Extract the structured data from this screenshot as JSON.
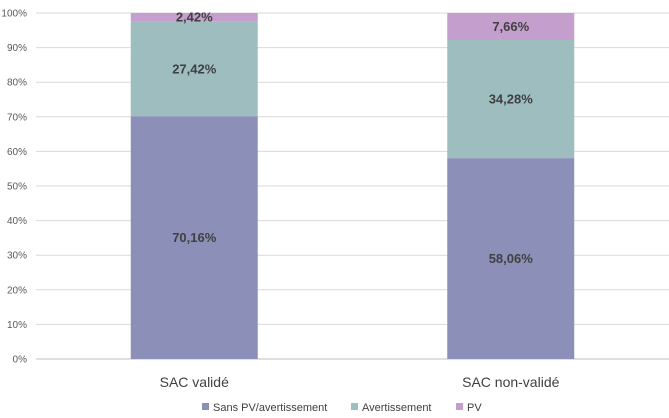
{
  "chart_data": {
    "type": "bar",
    "stacked": true,
    "title": "",
    "xlabel": "",
    "ylabel": "",
    "ylim": [
      0,
      100
    ],
    "y_ticks": [
      "0%",
      "10%",
      "20%",
      "30%",
      "40%",
      "50%",
      "60%",
      "70%",
      "80%",
      "90%",
      "100%"
    ],
    "grid": true,
    "legend_position": "bottom",
    "categories": [
      "SAC validé",
      "SAC non-validé"
    ],
    "series": [
      {
        "name": "Sans PV/avertissement",
        "values": [
          70.16,
          58.06
        ],
        "labels": [
          "70,16%",
          "58,06%"
        ],
        "color": "#8c8fb8"
      },
      {
        "name": "Avertissement",
        "values": [
          27.42,
          34.28
        ],
        "labels": [
          "27,42%",
          "34,28%"
        ],
        "color": "#9dbdbe"
      },
      {
        "name": "PV",
        "values": [
          2.42,
          7.66
        ],
        "labels": [
          "2,42%",
          "7,66%"
        ],
        "color": "#c49fce"
      }
    ]
  }
}
